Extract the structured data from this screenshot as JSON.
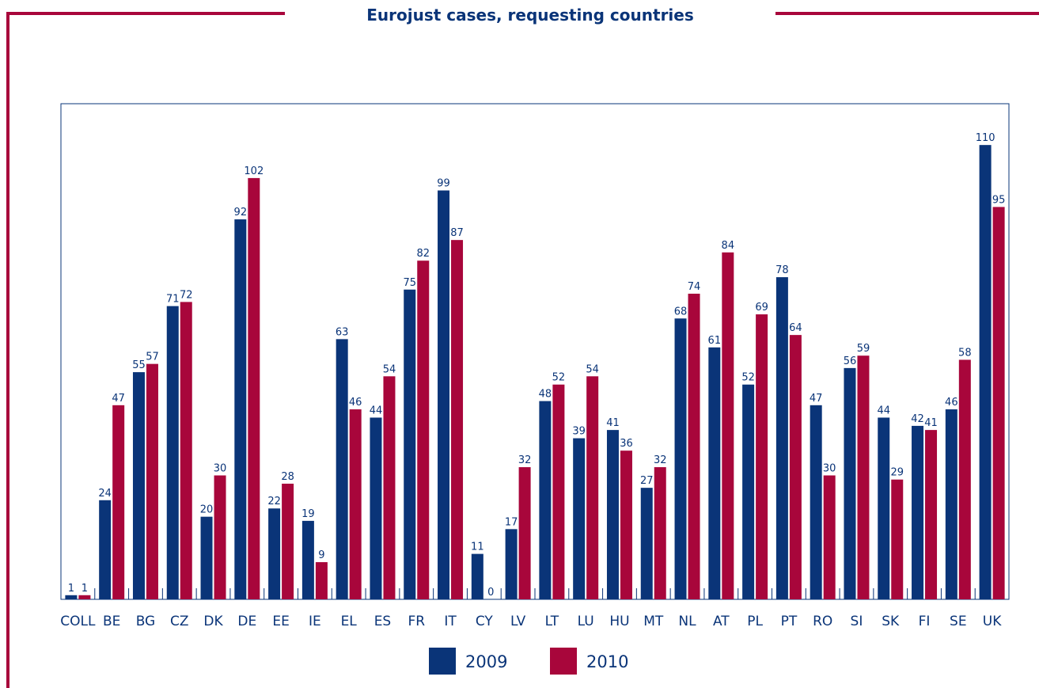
{
  "chart_data": {
    "type": "bar",
    "title": "Eurojust cases, requesting countries",
    "categories": [
      "COLL",
      "BE",
      "BG",
      "CZ",
      "DK",
      "DE",
      "EE",
      "IE",
      "EL",
      "ES",
      "FR",
      "IT",
      "CY",
      "LV",
      "LT",
      "LU",
      "HU",
      "MT",
      "NL",
      "AT",
      "PL",
      "PT",
      "RO",
      "SI",
      "SK",
      "FI",
      "SE",
      "UK"
    ],
    "series": [
      {
        "name": "2009",
        "color": "#0a3478",
        "values": [
          1,
          24,
          55,
          71,
          20,
          92,
          22,
          19,
          63,
          44,
          75,
          99,
          11,
          17,
          48,
          39,
          41,
          27,
          68,
          61,
          52,
          78,
          47,
          56,
          44,
          42,
          46,
          110
        ]
      },
      {
        "name": "2010",
        "color": "#a8063b",
        "values": [
          1,
          47,
          57,
          72,
          30,
          102,
          28,
          9,
          46,
          54,
          82,
          87,
          0,
          32,
          52,
          54,
          36,
          32,
          74,
          84,
          69,
          64,
          30,
          59,
          29,
          41,
          58,
          95
        ]
      }
    ],
    "ylim": [
      0,
      120
    ]
  }
}
